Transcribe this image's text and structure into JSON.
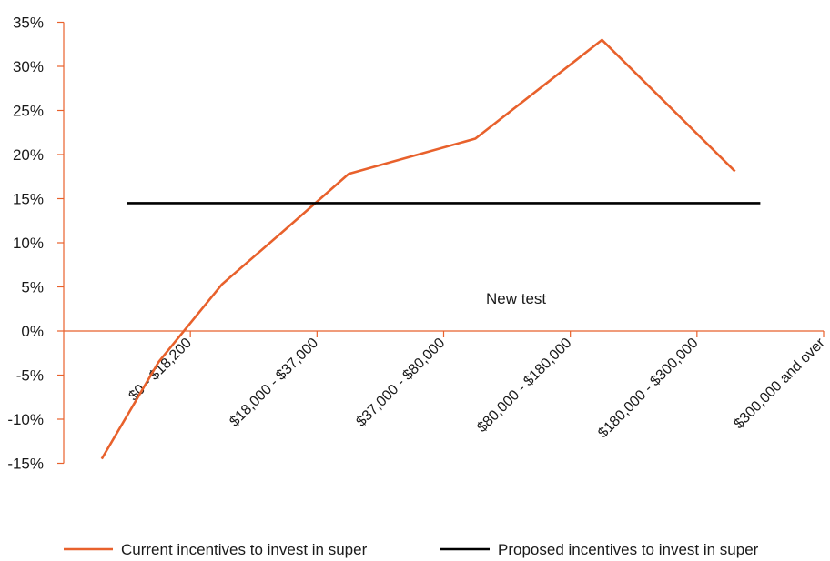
{
  "chart_data": {
    "type": "line",
    "categories": [
      "$0 - $18,200",
      "$18,000 - $37,000",
      "$37,000 - $80,000",
      "$80,000 - $180,000",
      "$180,000 - $300,000",
      "$300,000 and over"
    ],
    "ylim": [
      -15,
      35
    ],
    "yticks": [
      -15,
      -10,
      -5,
      0,
      5,
      10,
      15,
      20,
      25,
      30,
      35
    ],
    "ytick_labels": [
      "-15%",
      "-10%",
      "-5%",
      "0%",
      "5%",
      "10%",
      "15%",
      "20%",
      "25%",
      "30%",
      "35%"
    ],
    "series": [
      {
        "name": "Current incentives to invest in super",
        "color": "#e8612c",
        "points": [
          {
            "x": 0.6,
            "y": -14.5
          },
          {
            "x": 1.5,
            "y": -3.5
          },
          {
            "x": 2.5,
            "y": 5.3
          },
          {
            "x": 3.5,
            "y": 11.5
          },
          {
            "x": 4.5,
            "y": 17.8
          },
          {
            "x": 6.5,
            "y": 21.8
          },
          {
            "x": 8.5,
            "y": 33.0
          },
          {
            "x": 10.6,
            "y": 18.1
          }
        ]
      },
      {
        "name": "Proposed incentives to invest in super",
        "color": "#000000",
        "points": [
          {
            "x": 1.0,
            "y": 14.5
          },
          {
            "x": 11.0,
            "y": 14.5
          }
        ]
      }
    ],
    "annotation": "New test",
    "annotation_at": {
      "x": 7.0,
      "y": 3.5
    },
    "legend": "bottom",
    "grid": false
  }
}
